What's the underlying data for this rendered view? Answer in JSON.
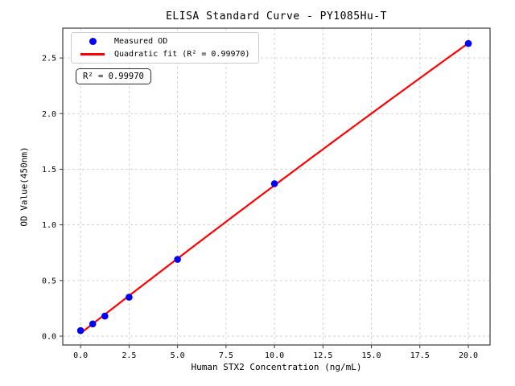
{
  "chart_data": {
    "type": "scatter",
    "title": "ELISA Standard Curve - PY1085Hu-T",
    "xlabel": "Human STX2 Concentration (ng/mL)",
    "ylabel": "OD Value(450nm)",
    "x": [
      0,
      0.625,
      1.25,
      2.5,
      5,
      10,
      20
    ],
    "series": [
      {
        "name": "Measured OD",
        "kind": "scatter",
        "color": "#0000ff",
        "values": [
          0.05,
          0.11,
          0.18,
          0.35,
          0.69,
          1.37,
          2.63
        ]
      },
      {
        "name": "Quadratic fit (R² = 0.99970)",
        "kind": "line",
        "fit": "quadratic",
        "color": "#ff0000"
      }
    ],
    "xticks": {
      "values": [
        0,
        2.5,
        5,
        7.5,
        10,
        12.5,
        15,
        17.5,
        20
      ],
      "labels": [
        "0.0",
        "2.5",
        "5.0",
        "7.5",
        "10.0",
        "12.5",
        "15.0",
        "17.5",
        "20.0"
      ]
    },
    "yticks": {
      "values": [
        0,
        0.5,
        1,
        1.5,
        2,
        2.5
      ],
      "labels": [
        "0.0",
        "0.5",
        "1.0",
        "1.5",
        "2.0",
        "2.5"
      ]
    },
    "xlim": [
      -0.92,
      21.12
    ],
    "ylim": [
      -0.0795,
      2.768
    ],
    "grid": {
      "on": true,
      "style": "dashed",
      "color": "#cdcdcd"
    },
    "axes_color": "#3a3a3a",
    "legend": {
      "position": "upper left",
      "entries": [
        "Measured OD",
        "Quadratic fit (R² = 0.99970)"
      ]
    },
    "annotation": "R² = 0.99970"
  }
}
